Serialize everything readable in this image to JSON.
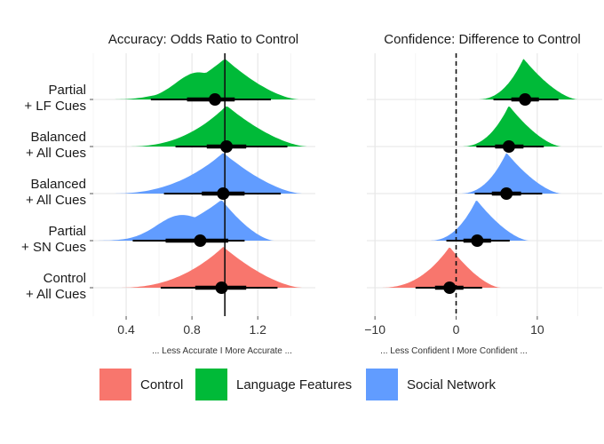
{
  "colors": {
    "control": "#F8766D",
    "language_features": "#00BA38",
    "social_network": "#619CFF"
  },
  "chart_data": [
    {
      "type": "density-interval",
      "title": "Accuracy: Odds Ratio to Control",
      "xlabel": "... Less Accurate  I  More Accurate ...",
      "xlim": [
        0.2,
        1.55
      ],
      "xticks": [
        "0.4",
        "0.8",
        "1.2"
      ],
      "xtick_values": [
        0.4,
        0.8,
        1.2
      ],
      "reference_line": 1.0,
      "grid": true,
      "categories": [
        "Partial\n+ LF Cues",
        "Balanced\n+ All Cues",
        "Balanced\n+ All Cues",
        "Partial\n+ SN Cues",
        "Control\n+ All Cues"
      ],
      "series": [
        {
          "condition": "Partial\n+ LF Cues",
          "color_key": "language_features",
          "point": 0.94,
          "interval_66": [
            0.77,
            1.06
          ],
          "interval_95": [
            0.55,
            1.28
          ],
          "support": [
            0.3,
            1.45
          ],
          "mode": 1.0,
          "left_shoulder": [
            0.82,
            0.6
          ]
        },
        {
          "condition": "Balanced\n+ All Cues",
          "color_key": "language_features",
          "point": 1.01,
          "interval_66": [
            0.89,
            1.13
          ],
          "interval_95": [
            0.7,
            1.38
          ],
          "support": [
            0.4,
            1.5
          ],
          "mode": 1.01,
          "left_shoulder": [
            0.0,
            0.0
          ]
        },
        {
          "condition": "Balanced\n+ All Cues",
          "color_key": "social_network",
          "point": 0.99,
          "interval_66": [
            0.86,
            1.12
          ],
          "interval_95": [
            0.63,
            1.34
          ],
          "support": [
            0.3,
            1.47
          ],
          "mode": 0.99,
          "left_shoulder": [
            0.0,
            0.0
          ]
        },
        {
          "condition": "Partial\n+ SN Cues",
          "color_key": "social_network",
          "point": 0.85,
          "interval_66": [
            0.64,
            1.02
          ],
          "interval_95": [
            0.44,
            1.12
          ],
          "support": [
            0.2,
            1.3
          ],
          "mode": 0.98,
          "left_shoulder": [
            0.72,
            0.6
          ]
        },
        {
          "condition": "Control\n+ All Cues",
          "color_key": "control",
          "point": 0.98,
          "interval_66": [
            0.82,
            1.13
          ],
          "interval_95": [
            0.61,
            1.32
          ],
          "support": [
            0.34,
            1.47
          ],
          "mode": 0.99,
          "left_shoulder": [
            0.0,
            0.0
          ]
        }
      ]
    },
    {
      "type": "density-interval",
      "title": "Confidence: Difference to Control",
      "xlabel": "... Less Confident I  More Confident ...",
      "xlim": [
        -11,
        18
      ],
      "xticks": [
        "−10",
        "0",
        "10"
      ],
      "xtick_values": [
        -10,
        0,
        10
      ],
      "reference_line": 0,
      "grid": true,
      "categories": [
        "Partial\n+ LF Cues",
        "Balanced\n+ All Cues",
        "Balanced\n+ All Cues",
        "Partial\n+ SN Cues",
        "Control\n+ All Cues"
      ],
      "series": [
        {
          "condition": "Partial\n+ LF Cues",
          "color_key": "language_features",
          "point": 8.5,
          "interval_66": [
            6.8,
            10.2
          ],
          "interval_95": [
            4.6,
            12.6
          ],
          "support": [
            2.5,
            15.0
          ],
          "mode": 8.3
        },
        {
          "condition": "Balanced\n+ All Cues",
          "color_key": "language_features",
          "point": 6.5,
          "interval_66": [
            4.8,
            8.3
          ],
          "interval_95": [
            2.5,
            10.8
          ],
          "support": [
            0.5,
            13.0
          ],
          "mode": 6.5
        },
        {
          "condition": "Balanced\n+ All Cues",
          "color_key": "social_network",
          "point": 6.2,
          "interval_66": [
            4.4,
            8.0
          ],
          "interval_95": [
            2.3,
            10.6
          ],
          "support": [
            0.3,
            13.0
          ],
          "mode": 6.2
        },
        {
          "condition": "Partial\n+ SN Cues",
          "color_key": "social_network",
          "point": 2.6,
          "interval_66": [
            0.9,
            4.3
          ],
          "interval_95": [
            -1.2,
            6.6
          ],
          "support": [
            -3.5,
            9.0
          ],
          "mode": 2.5
        },
        {
          "condition": "Control\n+ All Cues",
          "color_key": "control",
          "point": -0.8,
          "interval_66": [
            -2.6,
            0.9
          ],
          "interval_95": [
            -5.0,
            3.2
          ],
          "support": [
            -9.5,
            5.5
          ],
          "mode": -0.8
        }
      ]
    }
  ],
  "legend": {
    "items": [
      {
        "label": "Control",
        "color_key": "control"
      },
      {
        "label": "Language Features",
        "color_key": "language_features"
      },
      {
        "label": "Social Network",
        "color_key": "social_network"
      }
    ]
  }
}
